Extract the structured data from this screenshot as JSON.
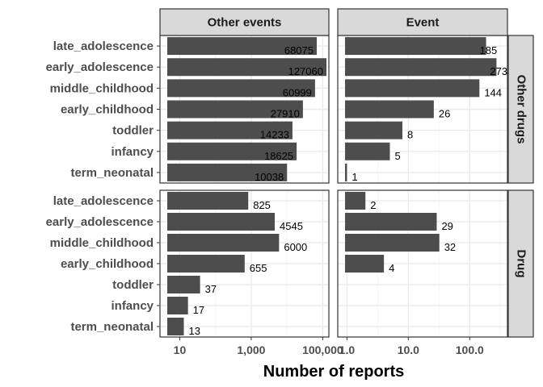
{
  "chart_data": {
    "type": "bar",
    "orientation": "horizontal",
    "xlabel": "Number of reports",
    "x_scale": "log10",
    "categories": [
      "late_adolescence",
      "early_adolescence",
      "middle_childhood",
      "early_childhood",
      "toddler",
      "infancy",
      "term_neonatal"
    ],
    "column_facets": [
      "Other events",
      "Event"
    ],
    "row_facets": [
      "Other drugs",
      "Drug"
    ],
    "panels": [
      {
        "row": "Other drugs",
        "col": "Other events",
        "values": [
          68075,
          127060,
          60999,
          27910,
          14233,
          18625,
          10038
        ],
        "labels": [
          "68075",
          "127060",
          "60999",
          "27910",
          "14233",
          "18625",
          "10038"
        ]
      },
      {
        "row": "Other drugs",
        "col": "Event",
        "values": [
          185,
          273,
          144,
          26,
          8,
          5,
          1
        ],
        "labels": [
          "185",
          "273",
          "144",
          "26",
          "8",
          "5",
          "1"
        ]
      },
      {
        "row": "Drug",
        "col": "Other events",
        "values": [
          825,
          4545,
          6000,
          655,
          37,
          17,
          13
        ],
        "labels": [
          "825",
          "4545",
          "6000",
          "655",
          "37",
          "17",
          "13"
        ]
      },
      {
        "row": "Drug",
        "col": "Event",
        "values": [
          2,
          29,
          32,
          4,
          null,
          null,
          null
        ],
        "labels": [
          "2",
          "29",
          "32",
          "4",
          "",
          "",
          ""
        ]
      }
    ],
    "x_ticks_left": [
      "10",
      "1,000",
      "100,000"
    ],
    "x_ticks_right": [
      "1.0",
      "10.0",
      "100.0"
    ],
    "bar_color": "#4d4d4d",
    "strip_fill": "#d9d9d9",
    "grid": true
  }
}
